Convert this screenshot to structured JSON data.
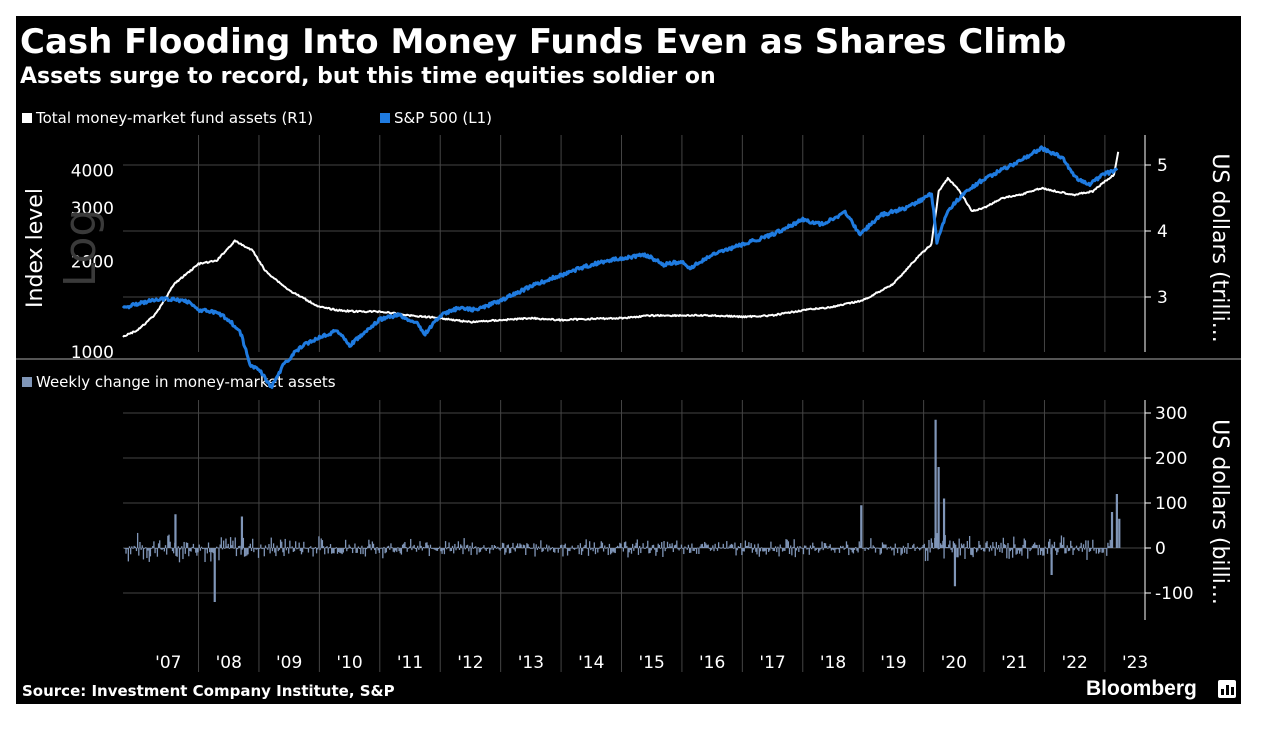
{
  "title": "Cash Flooding Into Money Funds Even as Shares Climb",
  "subtitle": "Assets surge to record, but this time equities soldier on",
  "source": "Source: Investment Company Institute, S&P",
  "brand": "Bloomberg",
  "colors": {
    "background": "#000000",
    "sp500": "#1f7be0",
    "mmf": "#ffffff",
    "weekly": "#8096b8",
    "grid": "#444444",
    "text": "#ffffff"
  },
  "chart_data": [
    {
      "type": "line",
      "legend": [
        {
          "name": "Total money-market fund assets (R1)",
          "color": "#ffffff"
        },
        {
          "name": "S&P 500  (L1)",
          "color": "#1f7be0"
        }
      ],
      "left_axis": {
        "label": "Index level",
        "scale_label": "Log",
        "scale": "log",
        "ticks": [
          "1000",
          "2000",
          "3000",
          "4000"
        ],
        "tick_values": [
          1000,
          2000,
          3000,
          4000
        ]
      },
      "right_axis": {
        "label": "US dollars (trilli...",
        "ticks": [
          "3",
          "4",
          "5"
        ],
        "tick_values": [
          3,
          4,
          5
        ]
      },
      "series": [
        {
          "name": "S&P 500  (L1)",
          "axis": "left",
          "x": [
            2006.75,
            2007.0,
            2007.4,
            2007.8,
            2008.0,
            2008.3,
            2008.5,
            2008.7,
            2008.85,
            2009.0,
            2009.2,
            2009.4,
            2009.6,
            2009.8,
            2010.0,
            2010.3,
            2010.5,
            2010.8,
            2011.0,
            2011.3,
            2011.6,
            2011.75,
            2012.0,
            2012.3,
            2012.6,
            2013.0,
            2013.5,
            2014.0,
            2014.5,
            2015.0,
            2015.4,
            2015.7,
            2016.0,
            2016.1,
            2016.5,
            2017.0,
            2017.5,
            2018.0,
            2018.3,
            2018.7,
            2018.95,
            2019.3,
            2019.7,
            2020.0,
            2020.13,
            2020.22,
            2020.4,
            2020.7,
            2021.0,
            2021.5,
            2021.95,
            2022.3,
            2022.5,
            2022.75,
            2023.0,
            2023.2
          ],
          "y": [
            1400,
            1450,
            1500,
            1480,
            1380,
            1350,
            1280,
            1150,
            900,
            880,
            760,
            900,
            1000,
            1070,
            1120,
            1180,
            1050,
            1180,
            1280,
            1330,
            1250,
            1150,
            1320,
            1400,
            1380,
            1480,
            1650,
            1800,
            1950,
            2050,
            2100,
            1950,
            2000,
            1880,
            2100,
            2270,
            2450,
            2750,
            2650,
            2900,
            2450,
            2850,
            3000,
            3230,
            3350,
            2300,
            2950,
            3400,
            3750,
            4200,
            4750,
            4400,
            3800,
            3600,
            3900,
            4000
          ]
        },
        {
          "name": "Total money-market fund assets (R1)",
          "axis": "right",
          "x": [
            2006.75,
            2007.0,
            2007.3,
            2007.6,
            2008.0,
            2008.3,
            2008.6,
            2008.9,
            2009.1,
            2009.5,
            2009.8,
            2010.0,
            2010.3,
            2010.6,
            2011.0,
            2011.5,
            2012.0,
            2012.5,
            2013.0,
            2013.5,
            2014.0,
            2014.5,
            2015.0,
            2015.5,
            2016.0,
            2016.5,
            2017.0,
            2017.5,
            2018.0,
            2018.5,
            2019.0,
            2019.5,
            2019.9,
            2020.13,
            2020.25,
            2020.4,
            2020.6,
            2020.8,
            2021.0,
            2021.3,
            2021.6,
            2021.95,
            2022.2,
            2022.5,
            2022.8,
            2023.0,
            2023.15,
            2023.22
          ],
          "y": [
            2.4,
            2.5,
            2.75,
            3.2,
            3.5,
            3.55,
            3.85,
            3.7,
            3.4,
            3.1,
            2.95,
            2.85,
            2.8,
            2.78,
            2.78,
            2.72,
            2.68,
            2.62,
            2.65,
            2.68,
            2.65,
            2.67,
            2.68,
            2.72,
            2.72,
            2.72,
            2.7,
            2.72,
            2.8,
            2.85,
            2.95,
            3.2,
            3.6,
            3.8,
            4.6,
            4.8,
            4.6,
            4.3,
            4.35,
            4.5,
            4.55,
            4.65,
            4.6,
            4.55,
            4.6,
            4.75,
            4.85,
            5.2
          ]
        }
      ]
    },
    {
      "type": "bar",
      "legend": [
        {
          "name": "Weekly change in money-market assets",
          "color": "#8096b8"
        }
      ],
      "right_axis": {
        "label": "US dollars (billi...",
        "ticks": [
          "300",
          "200",
          "100",
          "0",
          "-100"
        ],
        "tick_values": [
          300,
          200,
          100,
          0,
          -100
        ]
      },
      "x_range": [
        2006.75,
        2023.25
      ],
      "x_ticks": [
        "'07",
        "'08",
        "'09",
        "'10",
        "'11",
        "'12",
        "'13",
        "'14",
        "'15",
        "'16",
        "'17",
        "'18",
        "'19",
        "'20",
        "'21",
        "'22",
        "'23"
      ],
      "notable_weeks": [
        {
          "x": 2007.6,
          "value": 75
        },
        {
          "x": 2008.25,
          "value": -120
        },
        {
          "x": 2008.7,
          "value": 70
        },
        {
          "x": 2018.95,
          "value": 95
        },
        {
          "x": 2020.18,
          "value": 285
        },
        {
          "x": 2020.23,
          "value": 180
        },
        {
          "x": 2020.32,
          "value": 110
        },
        {
          "x": 2020.5,
          "value": -85
        },
        {
          "x": 2022.1,
          "value": -60
        },
        {
          "x": 2023.1,
          "value": 80
        },
        {
          "x": 2023.18,
          "value": 120
        },
        {
          "x": 2023.22,
          "value": 65
        }
      ]
    }
  ]
}
